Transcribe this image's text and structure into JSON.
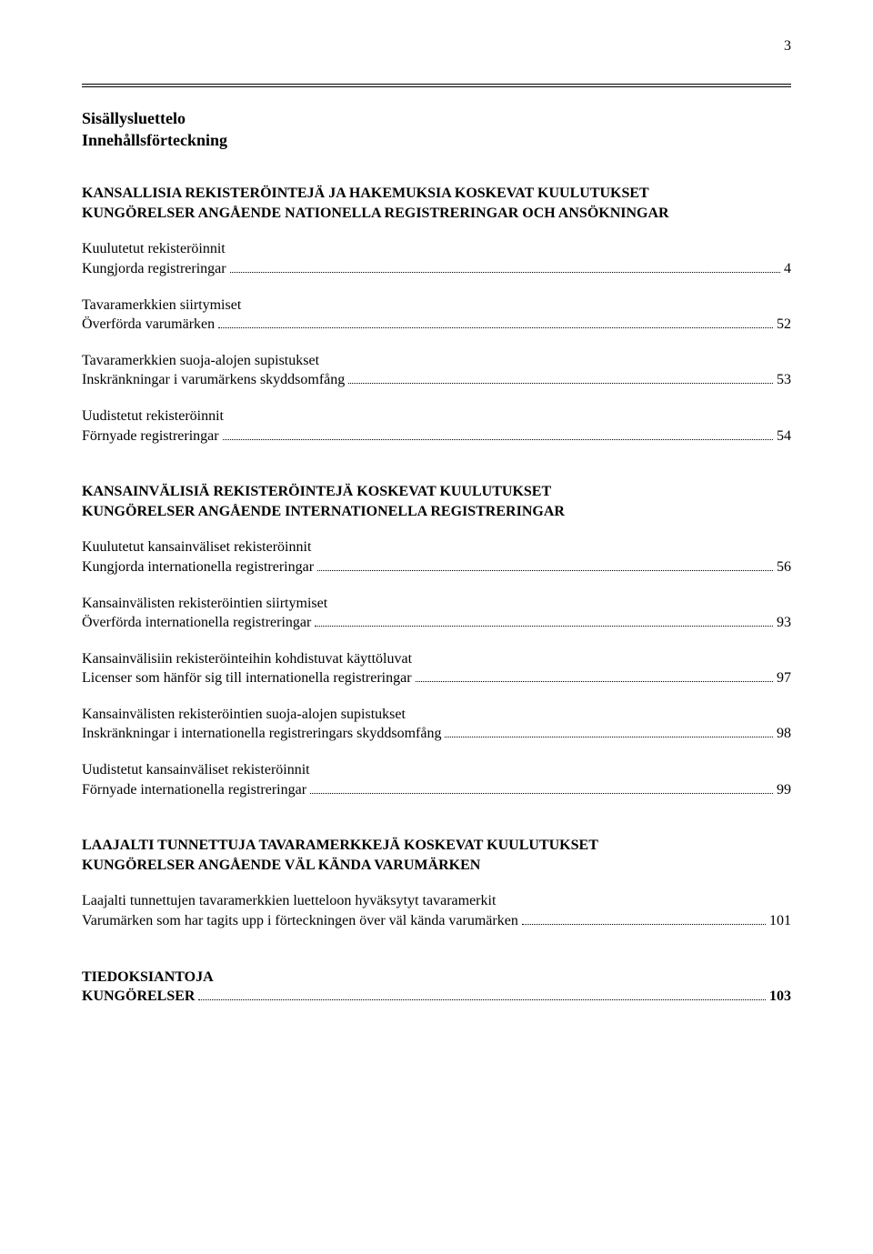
{
  "page_number": "3",
  "title_fi": "Sisällysluettelo",
  "title_sv": "Innehållsförteckning",
  "sections": [
    {
      "heading_fi": "KANSALLISIA REKISTERÖINTEJÄ JA HAKEMUKSIA KOSKEVAT KUULUTUKSET",
      "heading_sv": "KUNGÖRELSER ANGÅENDE NATIONELLA REGISTRERINGAR OCH ANSÖKNINGAR",
      "entries": [
        {
          "fi": "Kuulutetut rekisteröinnit",
          "sv": "Kungjorda registreringar",
          "page": "4"
        },
        {
          "fi": "Tavaramerkkien siirtymiset",
          "sv": "Överförda varumärken",
          "page": "52"
        },
        {
          "fi": "Tavaramerkkien suoja-alojen supistukset",
          "sv": "Inskränkningar i varumärkens skyddsomfång",
          "page": "53"
        },
        {
          "fi": "Uudistetut rekisteröinnit",
          "sv": "Förnyade registreringar",
          "page": "54"
        }
      ]
    },
    {
      "heading_fi": "KANSAINVÄLISIÄ REKISTERÖINTEJÄ KOSKEVAT KUULUTUKSET",
      "heading_sv": "KUNGÖRELSER ANGÅENDE INTERNATIONELLA REGISTRERINGAR",
      "entries": [
        {
          "fi": "Kuulutetut kansainväliset rekisteröinnit",
          "sv": "Kungjorda internationella registreringar",
          "page": "56"
        },
        {
          "fi": "Kansainvälisten rekisteröintien siirtymiset",
          "sv": "Överförda internationella registreringar",
          "page": "93"
        },
        {
          "fi": "Kansainvälisiin rekisteröinteihin kohdistuvat käyttöluvat",
          "sv": "Licenser som hänför sig till internationella registreringar",
          "page": "97"
        },
        {
          "fi": "Kansainvälisten rekisteröintien suoja-alojen supistukset",
          "sv": "Inskränkningar i internationella registreringars skyddsomfång",
          "page": "98"
        },
        {
          "fi": "Uudistetut kansainväliset rekisteröinnit",
          "sv": "Förnyade internationella registreringar",
          "page": "99"
        }
      ]
    },
    {
      "heading_fi": "LAAJALTI TUNNETTUJA TAVARAMERKKEJÄ KOSKEVAT KUULUTUKSET",
      "heading_sv": "KUNGÖRELSER ANGÅENDE VÄL KÄNDA VARUMÄRKEN",
      "entries": [
        {
          "fi": "Laajalti tunnettujen tavaramerkkien luetteloon hyväksytyt tavaramerkit",
          "sv": "Varumärken som har tagits upp i förteckningen över väl kända varumärken",
          "page": "101"
        }
      ]
    }
  ],
  "tiedoksiantoja": {
    "fi": "TIEDOKSIANTOJA",
    "sv": "KUNGÖRELSER",
    "page": "103"
  }
}
